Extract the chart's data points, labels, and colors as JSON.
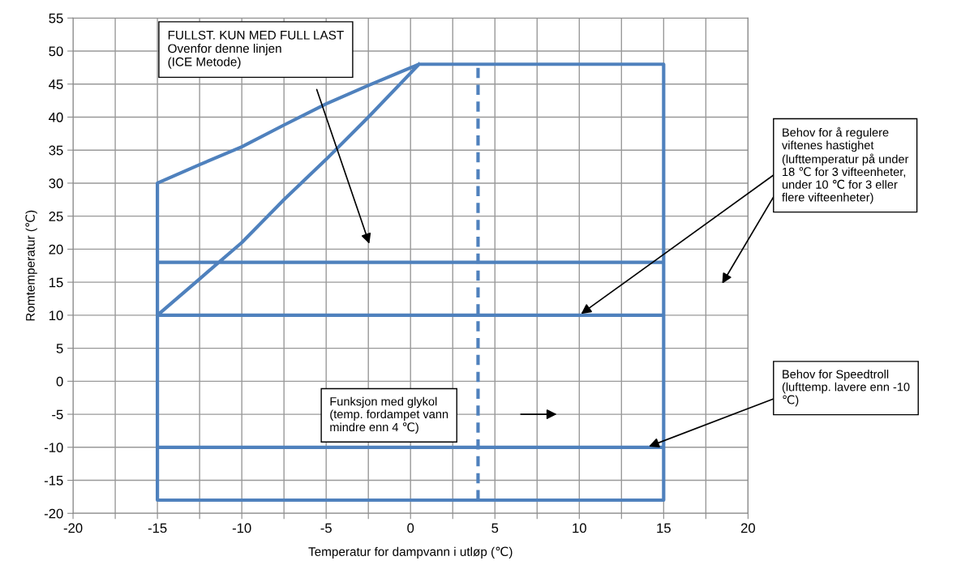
{
  "chart_data": {
    "type": "line",
    "xlabel": "Temperatur for dampvann i utløp (℃)",
    "ylabel": "Romtemperatur (℃)",
    "series": [
      {
        "color": "#4f81bd",
        "x": [
          -15,
          15,
          15,
          15,
          15,
          0.5,
          -2.5,
          -5,
          -7.5,
          -10,
          -12.5,
          -15,
          -15,
          -15,
          15,
          15,
          -15,
          15,
          15,
          -15,
          -15,
          -15,
          -12.5,
          -10,
          -7.5,
          -5,
          -2.5,
          0.5
        ],
        "values": [
          18,
          18,
          10,
          18,
          48,
          48,
          44.8,
          42,
          38.8,
          35.5,
          32.8,
          30,
          18,
          10,
          10,
          -10,
          -10,
          -10,
          -18,
          -18,
          -10,
          10,
          15.5,
          21,
          27.5,
          33.6,
          40,
          48
        ]
      },
      {
        "color": "#4f81bd",
        "x": [
          4,
          4
        ],
        "values": [
          -18,
          48
        ],
        "line_style": "dashed"
      }
    ],
    "xlim": [
      -20,
      20
    ],
    "ylim": [
      -20,
      55
    ],
    "xticks": [
      -20,
      {
        "value": -17.5,
        "label": null
      },
      -15,
      {
        "value": -12.5,
        "label": null
      },
      -10,
      {
        "value": -7.5,
        "label": null
      },
      -5,
      {
        "value": -2.5,
        "label": null
      },
      0,
      {
        "value": 2.5,
        "label": null
      },
      5,
      {
        "value": 7.5,
        "label": null
      },
      10,
      {
        "value": 12.5,
        "label": null
      },
      15,
      {
        "value": 17.5,
        "label": null
      },
      20
    ],
    "yticks": [
      -20,
      -15,
      -10,
      -5,
      0,
      5,
      10,
      15,
      20,
      25,
      30,
      35,
      40,
      45,
      50,
      55
    ],
    "grid": true,
    "marker": "none",
    "line_style": "solid",
    "annotations": [
      "FULLST. KUN MED FULL LAST\nOvenfor denne linjen\n(ICE Metode)",
      {
        "text": "Behov for å regulere\nviftenes hastighet\n(lufttemperatur på under\n18 ℃ for 3 vifteenheter,\nunder 10 ℃ for 3 eller\nflere vifteenheter)",
        "x": 10,
        "y": 10
      },
      {
        "text": "Behov for Speedtroll\n(lufttemp. lavere enn -10\n℃)",
        "x": 14,
        "y": -10
      },
      "Funksjon med glykol\n(temp. fordampet vann\nmindre enn 4 ℃)"
    ]
  }
}
